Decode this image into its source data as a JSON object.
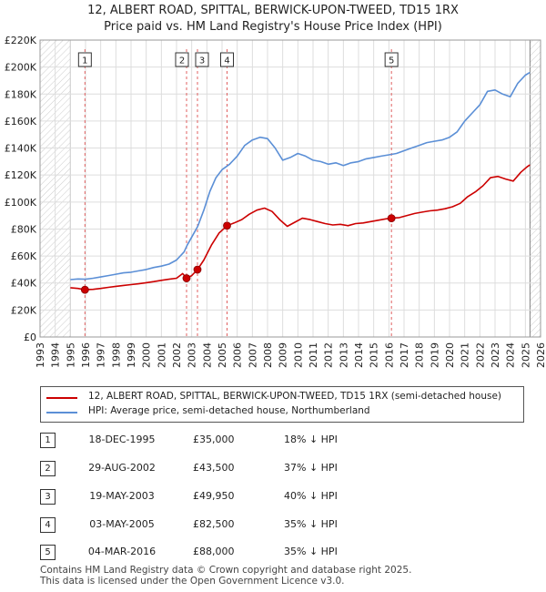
{
  "title_line1": "12, ALBERT ROAD, SPITTAL, BERWICK-UPON-TWEED, TD15 1RX",
  "title_line2": "Price paid vs. HM Land Registry's House Price Index (HPI)",
  "legend": {
    "property_label": "12, ALBERT ROAD, SPITTAL, BERWICK-UPON-TWEED, TD15 1RX (semi-detached house)",
    "hpi_label": "HPI: Average price, semi-detached house, Northumberland",
    "property_color": "#cc0000",
    "hpi_color": "#5b8fd6"
  },
  "transactions": [
    {
      "num": "1",
      "date": "18-DEC-1995",
      "price": "£35,000",
      "hpi": "18% ↓ HPI"
    },
    {
      "num": "2",
      "date": "29-AUG-2002",
      "price": "£43,500",
      "hpi": "37% ↓ HPI"
    },
    {
      "num": "3",
      "date": "19-MAY-2003",
      "price": "£49,950",
      "hpi": "40% ↓ HPI"
    },
    {
      "num": "4",
      "date": "03-MAY-2005",
      "price": "£82,500",
      "hpi": "35% ↓ HPI"
    },
    {
      "num": "5",
      "date": "04-MAR-2016",
      "price": "£88,000",
      "hpi": "35% ↓ HPI"
    }
  ],
  "footer_line1": "Contains HM Land Registry data © Crown copyright and database right 2025.",
  "footer_line2": "This data is licensed under the Open Government Licence v3.0.",
  "chart_data": {
    "type": "line",
    "title": "12, ALBERT ROAD, SPITTAL, BERWICK-UPON-TWEED, TD15 1RX — Price paid vs. HM Land Registry's House Price Index (HPI)",
    "xlabel": "",
    "ylabel": "",
    "xlim": [
      1993,
      2026
    ],
    "ylim": [
      0,
      220000
    ],
    "x_ticks": [
      1993,
      1994,
      1995,
      1996,
      1997,
      1998,
      1999,
      2000,
      2001,
      2002,
      2003,
      2004,
      2005,
      2006,
      2007,
      2008,
      2009,
      2010,
      2011,
      2012,
      2013,
      2014,
      2015,
      2016,
      2017,
      2018,
      2019,
      2020,
      2021,
      2022,
      2023,
      2024,
      2025,
      2026
    ],
    "y_ticks": [
      0,
      20000,
      40000,
      60000,
      80000,
      100000,
      120000,
      140000,
      160000,
      180000,
      200000,
      220000
    ],
    "y_tick_labels": [
      "£0",
      "£20K",
      "£40K",
      "£60K",
      "£80K",
      "£100K",
      "£120K",
      "£140K",
      "£160K",
      "£180K",
      "£200K",
      "£220K"
    ],
    "hatched_regions": [
      [
        1993,
        1995.0
      ],
      [
        2025.3,
        2026
      ]
    ],
    "grid": true,
    "series": [
      {
        "name": "HPI: Average price, semi-detached house, Northumberland",
        "color": "#5b8fd6",
        "points": [
          [
            1995.0,
            42500
          ],
          [
            1995.5,
            43000
          ],
          [
            1996.0,
            42800
          ],
          [
            1996.5,
            43500
          ],
          [
            1997.0,
            44500
          ],
          [
            1997.5,
            45500
          ],
          [
            1998.0,
            46500
          ],
          [
            1998.5,
            47500
          ],
          [
            1999.0,
            48000
          ],
          [
            1999.5,
            49000
          ],
          [
            2000.0,
            50000
          ],
          [
            2000.5,
            51500
          ],
          [
            2001.0,
            52500
          ],
          [
            2001.5,
            54000
          ],
          [
            2002.0,
            57000
          ],
          [
            2002.5,
            63000
          ],
          [
            2002.7,
            68000
          ],
          [
            2003.0,
            74000
          ],
          [
            2003.4,
            82000
          ],
          [
            2003.8,
            94000
          ],
          [
            2004.2,
            108000
          ],
          [
            2004.6,
            118000
          ],
          [
            2005.0,
            124000
          ],
          [
            2005.5,
            128000
          ],
          [
            2006.0,
            134000
          ],
          [
            2006.5,
            142000
          ],
          [
            2007.0,
            146000
          ],
          [
            2007.5,
            148000
          ],
          [
            2008.0,
            147000
          ],
          [
            2008.5,
            140000
          ],
          [
            2009.0,
            131000
          ],
          [
            2009.5,
            133000
          ],
          [
            2010.0,
            136000
          ],
          [
            2010.5,
            134000
          ],
          [
            2011.0,
            131000
          ],
          [
            2011.5,
            130000
          ],
          [
            2012.0,
            128000
          ],
          [
            2012.5,
            129000
          ],
          [
            2013.0,
            127000
          ],
          [
            2013.5,
            129000
          ],
          [
            2014.0,
            130000
          ],
          [
            2014.5,
            132000
          ],
          [
            2015.0,
            133000
          ],
          [
            2015.5,
            134000
          ],
          [
            2016.0,
            135000
          ],
          [
            2016.5,
            136000
          ],
          [
            2017.0,
            138000
          ],
          [
            2017.5,
            140000
          ],
          [
            2018.0,
            142000
          ],
          [
            2018.5,
            144000
          ],
          [
            2019.0,
            145000
          ],
          [
            2019.5,
            146000
          ],
          [
            2020.0,
            148000
          ],
          [
            2020.5,
            152000
          ],
          [
            2021.0,
            160000
          ],
          [
            2021.5,
            166000
          ],
          [
            2022.0,
            172000
          ],
          [
            2022.5,
            182000
          ],
          [
            2023.0,
            183000
          ],
          [
            2023.5,
            180000
          ],
          [
            2024.0,
            178000
          ],
          [
            2024.5,
            188000
          ],
          [
            2025.0,
            194000
          ],
          [
            2025.3,
            196000
          ]
        ]
      },
      {
        "name": "12, ALBERT ROAD, SPITTAL, BERWICK-UPON-TWEED, TD15 1RX (semi-detached house)",
        "color": "#cc0000",
        "points": [
          [
            1995.0,
            36500
          ],
          [
            1995.5,
            36000
          ],
          [
            1995.96,
            35000
          ],
          [
            1996.5,
            35300
          ],
          [
            1997.0,
            36000
          ],
          [
            1997.5,
            36800
          ],
          [
            1998.0,
            37500
          ],
          [
            1998.5,
            38200
          ],
          [
            1999.0,
            38800
          ],
          [
            1999.5,
            39400
          ],
          [
            2000.0,
            40200
          ],
          [
            2000.5,
            41000
          ],
          [
            2001.0,
            42000
          ],
          [
            2001.5,
            42800
          ],
          [
            2002.0,
            43500
          ],
          [
            2002.4,
            47000
          ],
          [
            2002.66,
            43500
          ],
          [
            2003.0,
            45500
          ],
          [
            2003.38,
            49950
          ],
          [
            2003.8,
            57000
          ],
          [
            2004.3,
            68000
          ],
          [
            2004.8,
            77000
          ],
          [
            2005.33,
            82500
          ],
          [
            2005.8,
            84500
          ],
          [
            2006.3,
            87000
          ],
          [
            2006.8,
            91000
          ],
          [
            2007.3,
            94000
          ],
          [
            2007.8,
            95500
          ],
          [
            2008.3,
            93000
          ],
          [
            2008.8,
            87000
          ],
          [
            2009.3,
            82000
          ],
          [
            2009.8,
            85000
          ],
          [
            2010.3,
            88000
          ],
          [
            2010.8,
            87000
          ],
          [
            2011.3,
            85500
          ],
          [
            2011.8,
            84000
          ],
          [
            2012.3,
            83000
          ],
          [
            2012.8,
            83500
          ],
          [
            2013.3,
            82500
          ],
          [
            2013.8,
            84000
          ],
          [
            2014.3,
            84500
          ],
          [
            2014.8,
            85500
          ],
          [
            2015.3,
            86500
          ],
          [
            2015.8,
            87500
          ],
          [
            2016.17,
            88000
          ],
          [
            2016.7,
            88500
          ],
          [
            2017.2,
            90000
          ],
          [
            2017.7,
            91500
          ],
          [
            2018.2,
            92500
          ],
          [
            2018.7,
            93500
          ],
          [
            2019.2,
            94000
          ],
          [
            2019.7,
            95000
          ],
          [
            2020.2,
            96500
          ],
          [
            2020.7,
            99000
          ],
          [
            2021.2,
            104000
          ],
          [
            2021.7,
            107500
          ],
          [
            2022.2,
            112000
          ],
          [
            2022.7,
            118000
          ],
          [
            2023.2,
            119000
          ],
          [
            2023.7,
            117000
          ],
          [
            2024.2,
            115500
          ],
          [
            2024.7,
            122000
          ],
          [
            2025.1,
            126000
          ],
          [
            2025.3,
            127500
          ]
        ]
      }
    ],
    "sales": [
      {
        "label": "1",
        "x": 1995.96,
        "y": 35000
      },
      {
        "label": "2",
        "x": 2002.66,
        "y": 43500
      },
      {
        "label": "3",
        "x": 2003.38,
        "y": 49950
      },
      {
        "label": "4",
        "x": 2005.33,
        "y": 82500
      },
      {
        "label": "5",
        "x": 2016.17,
        "y": 88000
      }
    ]
  }
}
